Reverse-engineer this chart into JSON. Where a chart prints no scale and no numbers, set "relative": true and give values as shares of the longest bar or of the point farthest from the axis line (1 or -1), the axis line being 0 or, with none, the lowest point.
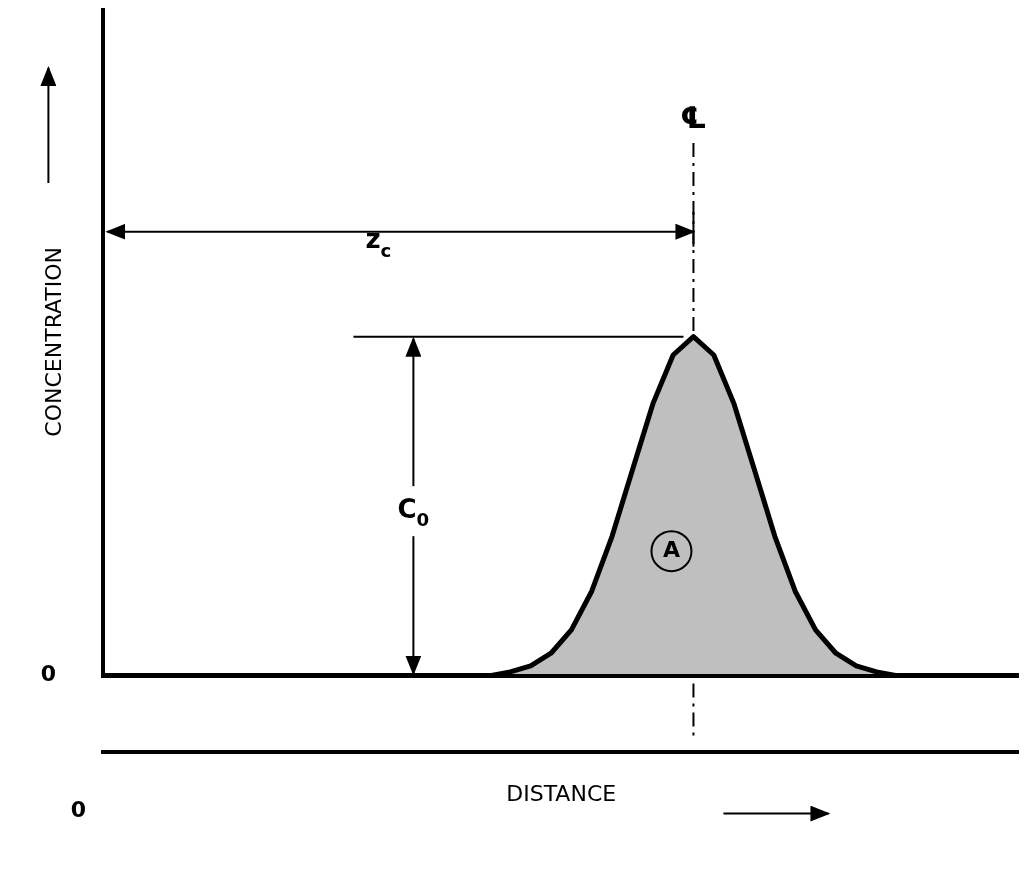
{
  "chart_data": {
    "type": "area",
    "relative": true,
    "xlabel": "DISTANCE",
    "ylabel": "CONCENTRATION",
    "categories": [
      null,
      null,
      null,
      null,
      null,
      null,
      null,
      null,
      null,
      null,
      null,
      null,
      null,
      null,
      null,
      null,
      null,
      null,
      null,
      null,
      null,
      null,
      null,
      null,
      null,
      null,
      null,
      null,
      null,
      null,
      null,
      null,
      null,
      null,
      null,
      null,
      null,
      null,
      null,
      null,
      null,
      null,
      null,
      null,
      null,
      null
    ],
    "series": [
      {
        "color": "#000000",
        "values": [
          0,
          0,
          0,
          0,
          0,
          0,
          0,
          0,
          0,
          0,
          0,
          0,
          0,
          0,
          0,
          0,
          0,
          0,
          0,
          0,
          0.011,
          0.029,
          0.066,
          0.135,
          0.249,
          0.411,
          0.607,
          0.801,
          0.946,
          1,
          0.946,
          0.801,
          0.607,
          0.411,
          0.249,
          0.135,
          0.066,
          0.029,
          0.011,
          0,
          0,
          0,
          0,
          0,
          0,
          0
        ]
      }
    ],
    "annotations": [
      "℄",
      "z$_{c}$",
      "C$_{0}$",
      "A",
      "0",
      "0"
    ],
    "legend": false,
    "grid": false,
    "marker": "none",
    "line_style": "solid"
  }
}
